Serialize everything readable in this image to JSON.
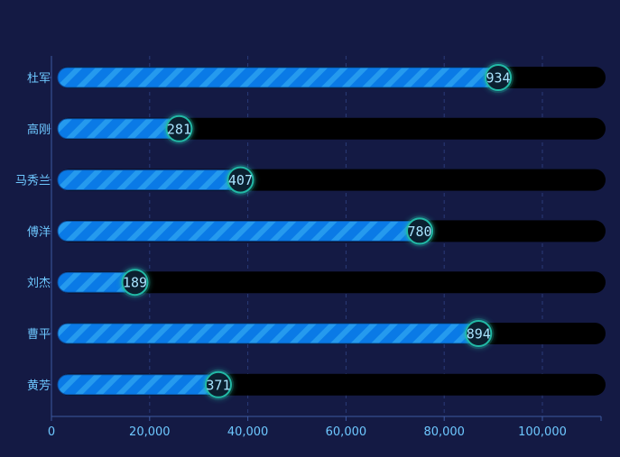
{
  "colors": {
    "background": "#141a44",
    "bar_track": "#000000",
    "bar_fill": "#0a7ae6",
    "bar_stripe": "#2aa0f0",
    "marker_ring": "#22b9a6",
    "marker_fill": "#0b2030",
    "marker_text": "#a9e4ff",
    "axis_label": "#6ec8ff",
    "grid": "#2a3b78",
    "axis_line": "#3c5aa0"
  },
  "chart_data": {
    "type": "bar",
    "orientation": "horizontal",
    "categories": [
      "杜军",
      "高刚",
      "马秀兰",
      "傅洋",
      "刘杰",
      "曹平",
      "黄芳"
    ],
    "series": [
      {
        "values": [
          91000,
          26000,
          38500,
          75000,
          17000,
          87000,
          34000
        ],
        "markers": [
          "934",
          "281",
          "407",
          "780",
          "189",
          "894",
          "371"
        ]
      }
    ],
    "track_max": 112000,
    "xlim": [
      0,
      112000
    ],
    "x_ticks": [
      0,
      20000,
      40000,
      60000,
      80000,
      100000
    ],
    "x_tick_labels": [
      "0",
      "20,000",
      "40,000",
      "60,000",
      "80,000",
      "100,000"
    ],
    "grid": true,
    "title": "",
    "xlabel": "",
    "ylabel": ""
  }
}
